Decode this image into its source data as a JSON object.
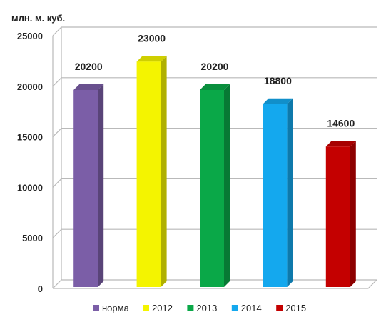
{
  "chart_data": {
    "type": "bar",
    "unit_label": "млн. м. куб.",
    "categories": [
      "норма",
      "2012",
      "2013",
      "2014",
      "2015"
    ],
    "values": [
      20200,
      23000,
      20200,
      18800,
      14600
    ],
    "data_labels": [
      "20200",
      "23000",
      "20200",
      "18800",
      "14600"
    ],
    "colors": [
      "#7b5ea7",
      "#f4f400",
      "#0aa848",
      "#14a8ee",
      "#c40000"
    ],
    "ylim": [
      0,
      25000
    ],
    "yticks": [
      0,
      5000,
      10000,
      15000,
      20000,
      25000
    ],
    "ytick_labels": [
      "0",
      "5000",
      "10000",
      "15000",
      "20000",
      "25000"
    ],
    "legend_entries": [
      "норма",
      "2012",
      "2013",
      "2014",
      "2015"
    ],
    "legend_position": "bottom",
    "grid": true,
    "style": "3d-bar"
  }
}
